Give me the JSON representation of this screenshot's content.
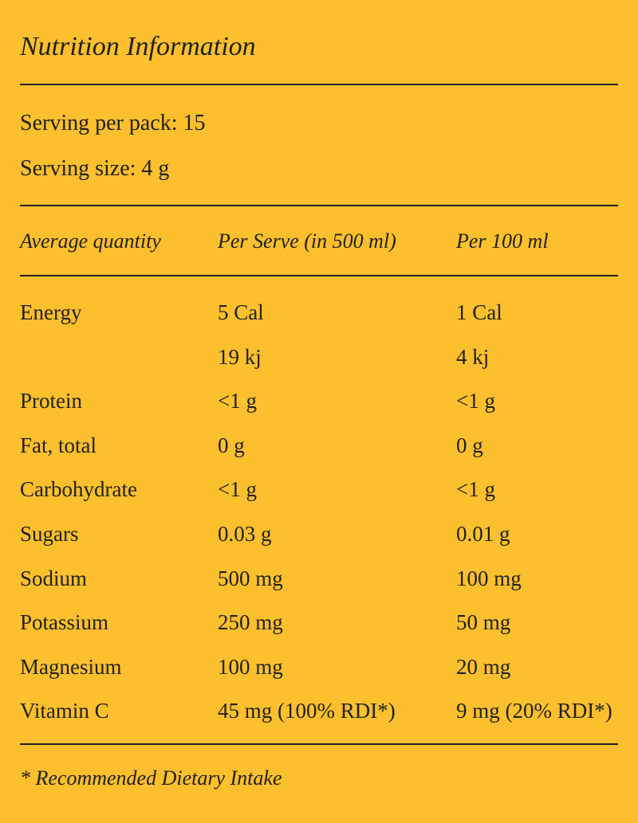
{
  "title": "Nutrition Information",
  "serving_per_pack": "Serving per pack: 15",
  "serving_size": "Serving size: 4 g",
  "headers": [
    "Average quantity",
    "Per Serve (in 500 ml)",
    "Per 100 ml"
  ],
  "rows": [
    [
      "Energy",
      "5 Cal",
      "1 Cal"
    ],
    [
      "",
      "19 kj",
      "4 kj"
    ],
    [
      "Protein",
      "<1 g",
      "<1 g"
    ],
    [
      "Fat, total",
      "0 g",
      "0 g"
    ],
    [
      "Carbohydrate",
      "<1 g",
      "<1 g"
    ],
    [
      "Sugars",
      "0.03 g",
      "0.01 g"
    ],
    [
      "Sodium",
      "500 mg",
      "100 mg"
    ],
    [
      "Potassium",
      "250 mg",
      "50 mg"
    ],
    [
      "Magnesium",
      "100 mg",
      "20 mg"
    ],
    [
      "Vitamin C",
      "45 mg (100% RDI*)",
      "9 mg (20% RDI*)"
    ]
  ],
  "footnote": "* Recommended Dietary Intake",
  "colors": {
    "background": "#FCBF2E",
    "text": "#222222"
  }
}
